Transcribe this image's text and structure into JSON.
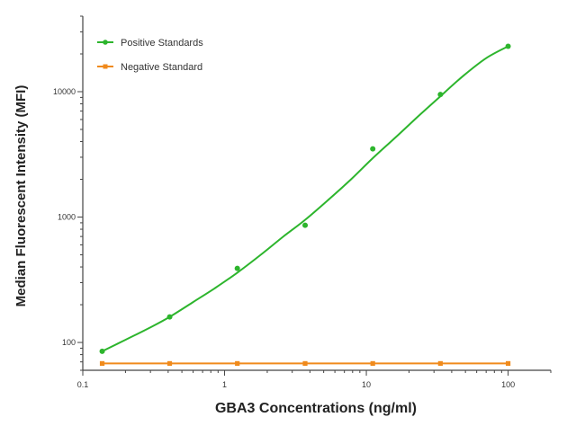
{
  "chart_data": {
    "type": "scatter",
    "xlabel": "GBA3 Concentrations (ng/ml)",
    "ylabel": "Median  Fluorescent Intensity  (MFI)",
    "x_scale": "log",
    "y_scale": "log",
    "xlim": [
      0.1,
      200
    ],
    "ylim": [
      60,
      40000
    ],
    "x_ticks": [
      0.1,
      1,
      10,
      100
    ],
    "x_tick_labels": [
      "0.1",
      "1",
      "10",
      "100"
    ],
    "y_ticks": [
      100,
      1000,
      10000
    ],
    "y_tick_labels": [
      "100",
      "1000",
      "10000"
    ],
    "grid": false,
    "legend_position": "top-left",
    "series": [
      {
        "name": "Positive Standards",
        "color": "#2db52d",
        "marker": "circle",
        "x": [
          0.137,
          0.41,
          1.23,
          3.7,
          11.1,
          33.3,
          100
        ],
        "y": [
          85,
          160,
          390,
          860,
          3500,
          9500,
          23000
        ],
        "fit_x": [
          0.137,
          0.2,
          0.3,
          0.41,
          0.6,
          0.85,
          1.23,
          1.8,
          2.6,
          3.7,
          5.5,
          7.8,
          11.1,
          16,
          23,
          33.3,
          48,
          70,
          100
        ],
        "fit_y": [
          85,
          105,
          132,
          160,
          210,
          270,
          360,
          500,
          700,
          950,
          1400,
          2000,
          2950,
          4300,
          6300,
          9200,
          13300,
          18500,
          23000
        ]
      },
      {
        "name": "Negative Standard",
        "color": "#f08a1c",
        "marker": "square",
        "x": [
          0.137,
          0.41,
          1.23,
          3.7,
          11.1,
          33.3,
          100
        ],
        "y": [
          68,
          68,
          68,
          68,
          68,
          68,
          68
        ]
      }
    ]
  }
}
